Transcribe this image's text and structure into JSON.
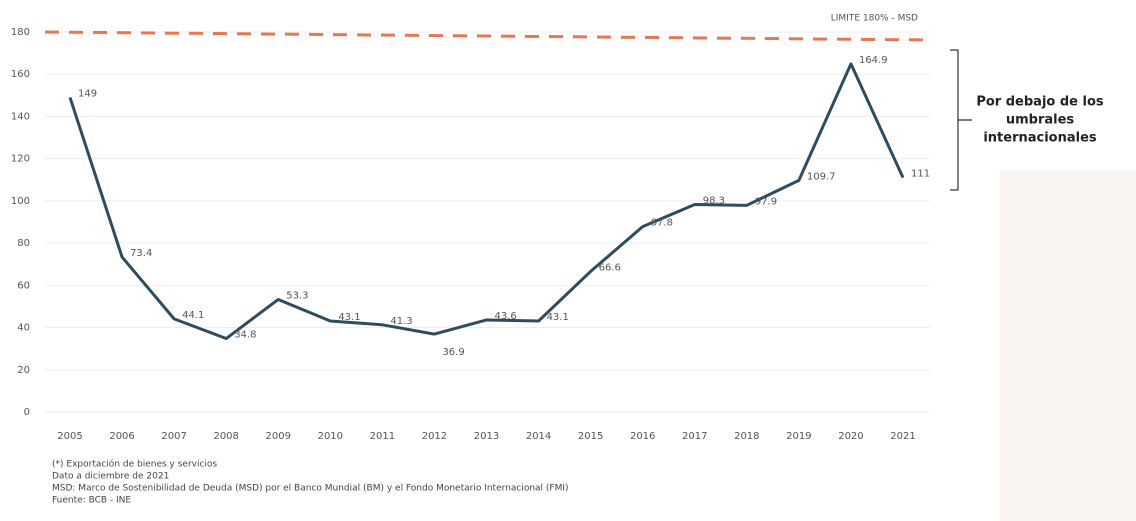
{
  "chart_data": {
    "type": "line",
    "categories": [
      "2005",
      "2006",
      "2007",
      "2008",
      "2009",
      "2010",
      "2011",
      "2012",
      "2013",
      "2014",
      "2015",
      "2016",
      "2017",
      "2018",
      "2019",
      "2020",
      "2021"
    ],
    "values": [
      149,
      73.4,
      44.1,
      34.8,
      53.3,
      43.1,
      41.3,
      36.9,
      43.6,
      43.1,
      66.6,
      87.8,
      98.3,
      97.9,
      109.7,
      164.9,
      111
    ],
    "color": "#2f4c5f",
    "ylim": [
      0,
      180
    ],
    "yticks": [
      0,
      20,
      40,
      60,
      80,
      100,
      120,
      140,
      160,
      180
    ],
    "grid": true,
    "threshold": 180,
    "threshold_label": "LIMITE 180% - MSD",
    "threshold_color": "#ea7550",
    "annotation": [
      "Por debajo de los",
      "umbrales",
      "internacionales"
    ],
    "notes": [
      "(*) Exportación de bienes y servicios",
      "Dato a diciembre de 2021",
      "MSD: Marco de Sostenibilidad de Deuda (MSD) por el Banco Mundial (BM) y el Fondo Monetario Internacional (FMI)",
      "Fuente: BCB - INE"
    ]
  }
}
